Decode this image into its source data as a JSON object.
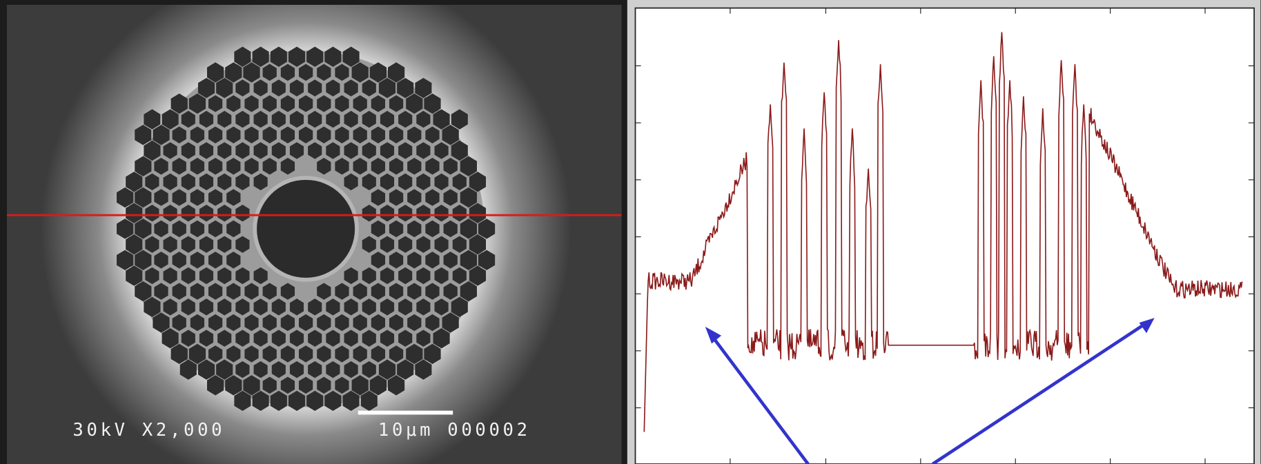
{
  "sem_image": {
    "labels": [
      "30kV X2,000",
      "10μm 000002"
    ]
  }
}
